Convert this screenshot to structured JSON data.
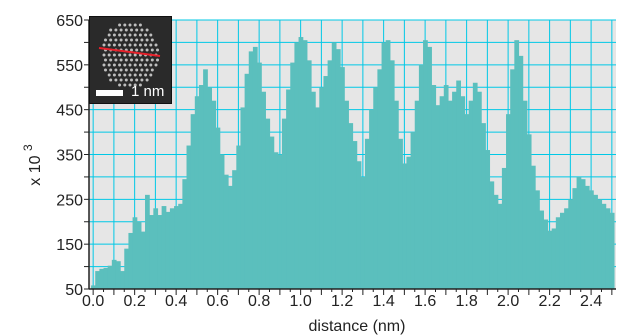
{
  "chart_data": {
    "type": "bar",
    "xlabel": "distance (nm)",
    "ylabel": "x 10",
    "ylabel_exponent": "3",
    "xlim": [
      -0.02,
      2.52
    ],
    "ylim": [
      50,
      650
    ],
    "x_ticks": [
      "0.0",
      "0.2",
      "0.4",
      "0.6",
      "0.8",
      "1.0",
      "1.2",
      "1.4",
      "1.6",
      "1.8",
      "2.0",
      "2.2",
      "2.4"
    ],
    "y_ticks": [
      "50",
      "150",
      "250",
      "350",
      "450",
      "550",
      "650"
    ],
    "grid": true,
    "colors": {
      "bars": "#5bbfbd",
      "plot_bg": "#e6e6e6",
      "grid": "#00c8e6",
      "axis": "#222222"
    },
    "bin_width": 0.02,
    "x": [
      0.0,
      0.02,
      0.04,
      0.06,
      0.08,
      0.1,
      0.12,
      0.14,
      0.16,
      0.18,
      0.2,
      0.22,
      0.24,
      0.26,
      0.28,
      0.3,
      0.32,
      0.34,
      0.36,
      0.38,
      0.4,
      0.42,
      0.44,
      0.46,
      0.48,
      0.5,
      0.52,
      0.54,
      0.56,
      0.58,
      0.6,
      0.62,
      0.64,
      0.66,
      0.68,
      0.7,
      0.72,
      0.74,
      0.76,
      0.78,
      0.8,
      0.82,
      0.84,
      0.86,
      0.88,
      0.9,
      0.92,
      0.94,
      0.96,
      0.98,
      1.0,
      1.02,
      1.04,
      1.06,
      1.08,
      1.1,
      1.12,
      1.14,
      1.16,
      1.18,
      1.2,
      1.22,
      1.24,
      1.26,
      1.28,
      1.3,
      1.32,
      1.34,
      1.36,
      1.38,
      1.4,
      1.42,
      1.44,
      1.46,
      1.48,
      1.5,
      1.52,
      1.54,
      1.56,
      1.58,
      1.6,
      1.62,
      1.64,
      1.66,
      1.68,
      1.7,
      1.72,
      1.74,
      1.76,
      1.78,
      1.8,
      1.82,
      1.84,
      1.86,
      1.88,
      1.9,
      1.92,
      1.94,
      1.96,
      1.98,
      2.0,
      2.02,
      2.04,
      2.06,
      2.08,
      2.1,
      2.12,
      2.14,
      2.16,
      2.18,
      2.2,
      2.22,
      2.24,
      2.26,
      2.28,
      2.3,
      2.32,
      2.34,
      2.36,
      2.38,
      2.4,
      2.42,
      2.44,
      2.46,
      2.48,
      2.5
    ],
    "values": [
      58,
      90,
      95,
      97,
      102,
      115,
      112,
      90,
      140,
      175,
      210,
      200,
      178,
      260,
      215,
      230,
      215,
      235,
      222,
      230,
      235,
      240,
      295,
      370,
      440,
      480,
      505,
      540,
      500,
      470,
      410,
      350,
      305,
      280,
      315,
      370,
      455,
      530,
      580,
      590,
      555,
      490,
      430,
      390,
      355,
      350,
      430,
      495,
      555,
      600,
      612,
      605,
      560,
      490,
      455,
      500,
      525,
      560,
      600,
      585,
      545,
      470,
      420,
      380,
      335,
      300,
      385,
      450,
      500,
      540,
      600,
      605,
      560,
      470,
      385,
      330,
      345,
      400,
      470,
      550,
      605,
      590,
      505,
      460,
      480,
      505,
      470,
      490,
      515,
      480,
      440,
      470,
      510,
      490,
      420,
      360,
      290,
      260,
      240,
      320,
      440,
      540,
      605,
      570,
      470,
      395,
      325,
      270,
      225,
      205,
      180,
      185,
      210,
      220,
      230,
      250,
      275,
      300,
      295,
      280,
      270,
      260,
      250,
      240,
      230,
      220
    ]
  },
  "inset": {
    "scale_bar_label": "1 nm",
    "colors": {
      "line": "#e8202a",
      "scale_bar": "#ffffff",
      "dots": "#d8d8d8"
    }
  }
}
